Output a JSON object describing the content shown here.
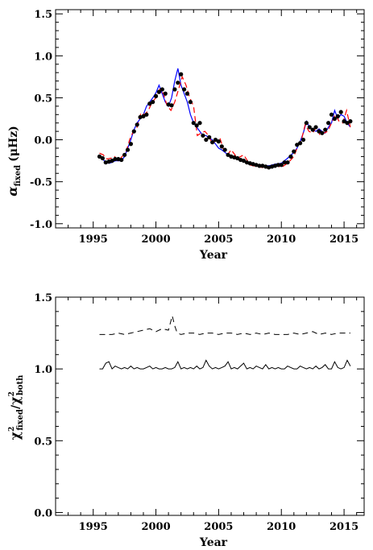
{
  "chart_data": [
    {
      "type": "line",
      "xlabel": "Year",
      "ylabel": {
        "symbol": "α",
        "subscript": "fixed",
        "unit": "(μHz)"
      },
      "xlim": [
        1992,
        2016.6
      ],
      "ylim": [
        -1.05,
        1.55
      ],
      "xticks": [
        1995,
        2000,
        2005,
        2010,
        2015
      ],
      "xtick_labels": [
        "1995",
        "2000",
        "2005",
        "2010",
        "2015"
      ],
      "yticks": [
        -1.0,
        -0.5,
        0.0,
        0.5,
        1.0,
        1.5
      ],
      "ytick_labels": [
        "-1.0",
        "-0.5",
        "0.0",
        "0.5",
        "1.0",
        "1.5"
      ],
      "grid": false,
      "colors": {
        "blue": "#0000ff",
        "red": "#ff0000",
        "dots": "#000000"
      },
      "series": [
        {
          "style": "blue-solid",
          "x": [
            1995.7,
            1996.0,
            1996.25,
            1996.5,
            1996.75,
            1997.0,
            1997.25,
            1997.5,
            1997.75,
            1998.0,
            1998.25,
            1998.5,
            1998.75,
            1999.0,
            1999.25,
            1999.5,
            1999.75,
            2000.0,
            2000.25,
            2000.5,
            2000.75,
            2001.0,
            2001.25,
            2001.5,
            2001.75,
            2002.0,
            2002.25,
            2002.5,
            2002.75,
            2003.0,
            2003.25,
            2003.5,
            2003.75,
            2004.0,
            2004.25,
            2004.5,
            2004.75,
            2005.0,
            2005.25,
            2005.5,
            2005.75,
            2006.0,
            2006.5,
            2007.0,
            2007.5,
            2008.0,
            2008.5,
            2009.0,
            2009.5,
            2010.0,
            2010.5,
            2011.0,
            2011.25,
            2011.5,
            2011.75,
            2012.0,
            2012.25,
            2012.5,
            2012.75,
            2013.0,
            2013.25,
            2013.5,
            2013.75,
            2014.0,
            2014.25,
            2014.5,
            2014.75,
            2015.0,
            2015.25,
            2015.5
          ],
          "y": [
            -0.22,
            -0.27,
            -0.28,
            -0.27,
            -0.25,
            -0.25,
            -0.25,
            -0.2,
            -0.1,
            0.0,
            0.12,
            0.2,
            0.25,
            0.3,
            0.4,
            0.45,
            0.5,
            0.56,
            0.65,
            0.55,
            0.45,
            0.4,
            0.5,
            0.7,
            0.85,
            0.65,
            0.55,
            0.45,
            0.3,
            0.2,
            0.15,
            0.1,
            0.05,
            0.05,
            0.02,
            0.0,
            -0.05,
            -0.1,
            -0.12,
            -0.15,
            -0.18,
            -0.2,
            -0.23,
            -0.25,
            -0.28,
            -0.3,
            -0.31,
            -0.31,
            -0.29,
            -0.28,
            -0.22,
            -0.15,
            -0.1,
            -0.02,
            0.08,
            0.22,
            0.15,
            0.12,
            0.1,
            0.13,
            0.1,
            0.08,
            0.15,
            0.2,
            0.35,
            0.25,
            0.3,
            0.28,
            0.2,
            0.15
          ]
        },
        {
          "style": "red-dashed",
          "x": [
            1995.5,
            1995.8,
            1996.1,
            1996.4,
            1996.7,
            1997.0,
            1997.3,
            1997.6,
            1997.9,
            1998.2,
            1998.5,
            1998.8,
            1999.1,
            1999.4,
            1999.7,
            2000.0,
            2000.3,
            2000.6,
            2000.9,
            2001.2,
            2001.5,
            2001.8,
            2002.1,
            2002.4,
            2002.7,
            2003.0,
            2003.3,
            2003.6,
            2003.9,
            2004.2,
            2004.5,
            2004.8,
            2005.1,
            2005.4,
            2005.7,
            2006.0,
            2006.5,
            2007.0,
            2007.5,
            2008.0,
            2008.5,
            2009.0,
            2009.5,
            2010.0,
            2010.5,
            2011.0,
            2011.3,
            2011.6,
            2011.9,
            2012.2,
            2012.5,
            2012.8,
            2013.1,
            2013.4,
            2013.7,
            2014.0,
            2014.3,
            2014.6,
            2014.9,
            2015.2,
            2015.5
          ],
          "y": [
            -0.16,
            -0.18,
            -0.23,
            -0.22,
            -0.2,
            -0.25,
            -0.2,
            -0.15,
            0.0,
            0.1,
            0.15,
            0.32,
            0.3,
            0.35,
            0.45,
            0.5,
            0.6,
            0.55,
            0.4,
            0.35,
            0.45,
            0.6,
            0.75,
            0.65,
            0.5,
            0.4,
            0.05,
            0.08,
            0.1,
            0.05,
            -0.05,
            0.0,
            0.02,
            -0.12,
            -0.18,
            -0.12,
            -0.22,
            -0.18,
            -0.3,
            -0.32,
            -0.33,
            -0.34,
            -0.3,
            -0.33,
            -0.28,
            -0.2,
            -0.08,
            0.0,
            0.18,
            0.1,
            0.08,
            0.15,
            0.05,
            0.08,
            0.1,
            0.2,
            0.3,
            0.22,
            0.2,
            0.35,
            0.15
          ]
        },
        {
          "style": "black-dots",
          "x": [
            1995.5,
            1995.75,
            1996.0,
            1996.25,
            1996.5,
            1996.75,
            1997.0,
            1997.25,
            1997.5,
            1997.75,
            1998.0,
            1998.25,
            1998.5,
            1998.75,
            1999.0,
            1999.25,
            1999.5,
            1999.75,
            2000.0,
            2000.25,
            2000.5,
            2000.75,
            2001.0,
            2001.25,
            2001.5,
            2001.75,
            2002.0,
            2002.25,
            2002.5,
            2002.75,
            2003.0,
            2003.25,
            2003.5,
            2003.75,
            2004.0,
            2004.25,
            2004.5,
            2004.75,
            2005.0,
            2005.25,
            2005.5,
            2005.75,
            2006.0,
            2006.25,
            2006.5,
            2006.75,
            2007.0,
            2007.25,
            2007.5,
            2007.75,
            2008.0,
            2008.25,
            2008.5,
            2008.75,
            2009.0,
            2009.25,
            2009.5,
            2009.75,
            2010.0,
            2010.25,
            2010.5,
            2010.75,
            2011.0,
            2011.25,
            2011.5,
            2011.75,
            2012.0,
            2012.25,
            2012.5,
            2012.75,
            2013.0,
            2013.25,
            2013.5,
            2013.75,
            2014.0,
            2014.25,
            2014.5,
            2014.75,
            2015.0,
            2015.25,
            2015.5
          ],
          "y": [
            -0.2,
            -0.22,
            -0.27,
            -0.26,
            -0.25,
            -0.23,
            -0.23,
            -0.24,
            -0.18,
            -0.12,
            -0.05,
            0.1,
            0.18,
            0.27,
            0.28,
            0.3,
            0.43,
            0.45,
            0.52,
            0.57,
            0.6,
            0.55,
            0.42,
            0.41,
            0.6,
            0.68,
            0.78,
            0.6,
            0.55,
            0.45,
            0.2,
            0.17,
            0.2,
            0.05,
            0.0,
            0.03,
            -0.03,
            0.0,
            -0.02,
            -0.08,
            -0.12,
            -0.18,
            -0.2,
            -0.21,
            -0.22,
            -0.24,
            -0.25,
            -0.27,
            -0.28,
            -0.29,
            -0.3,
            -0.31,
            -0.31,
            -0.32,
            -0.33,
            -0.32,
            -0.31,
            -0.3,
            -0.3,
            -0.27,
            -0.27,
            -0.2,
            -0.14,
            -0.06,
            -0.04,
            0.0,
            0.2,
            0.15,
            0.12,
            0.15,
            0.1,
            0.08,
            0.12,
            0.2,
            0.3,
            0.25,
            0.28,
            0.33,
            0.22,
            0.2,
            0.22
          ]
        }
      ]
    },
    {
      "type": "line",
      "xlabel": "Year",
      "ylabel": {
        "chi": "χ",
        "sup": "2",
        "num_sub": "fixed",
        "den_sub": "both"
      },
      "xlim": [
        1992,
        2016.6
      ],
      "ylim": [
        -0.02,
        1.5
      ],
      "xticks": [
        1995,
        2000,
        2005,
        2010,
        2015
      ],
      "xtick_labels": [
        "1995",
        "2000",
        "2005",
        "2010",
        "2015"
      ],
      "yticks": [
        0.0,
        0.5,
        1.0,
        1.5
      ],
      "ytick_labels": [
        "0.0",
        "0.5",
        "1.0",
        "1.5"
      ],
      "grid": false,
      "series": [
        {
          "style": "black-dashed",
          "x": [
            1995.5,
            1996.0,
            1996.5,
            1997.0,
            1997.5,
            1998.0,
            1998.5,
            1999.0,
            1999.5,
            2000.0,
            2000.5,
            2001.0,
            2001.3,
            2001.5,
            2001.7,
            2002.0,
            2002.5,
            2003.0,
            2003.5,
            2004.0,
            2004.5,
            2005.0,
            2005.5,
            2006.0,
            2006.5,
            2007.0,
            2007.5,
            2008.0,
            2008.5,
            2009.0,
            2009.5,
            2010.0,
            2010.5,
            2011.0,
            2011.5,
            2012.0,
            2012.5,
            2013.0,
            2013.5,
            2014.0,
            2014.5,
            2015.0,
            2015.5
          ],
          "y": [
            1.24,
            1.24,
            1.24,
            1.25,
            1.24,
            1.25,
            1.26,
            1.27,
            1.28,
            1.26,
            1.28,
            1.27,
            1.37,
            1.3,
            1.25,
            1.24,
            1.25,
            1.25,
            1.24,
            1.25,
            1.25,
            1.24,
            1.25,
            1.25,
            1.24,
            1.25,
            1.24,
            1.25,
            1.24,
            1.25,
            1.24,
            1.24,
            1.24,
            1.25,
            1.24,
            1.25,
            1.26,
            1.24,
            1.25,
            1.24,
            1.25,
            1.25,
            1.25
          ]
        },
        {
          "style": "black-solid",
          "x": [
            1995.5,
            1995.75,
            1996.0,
            1996.25,
            1996.5,
            1996.75,
            1997.0,
            1997.25,
            1997.5,
            1997.75,
            1998.0,
            1998.25,
            1998.5,
            1998.75,
            1999.0,
            1999.25,
            1999.5,
            1999.75,
            2000.0,
            2000.25,
            2000.5,
            2000.75,
            2001.0,
            2001.25,
            2001.5,
            2001.75,
            2002.0,
            2002.25,
            2002.5,
            2002.75,
            2003.0,
            2003.25,
            2003.5,
            2003.75,
            2004.0,
            2004.25,
            2004.5,
            2004.75,
            2005.0,
            2005.25,
            2005.5,
            2005.75,
            2006.0,
            2006.25,
            2006.5,
            2006.75,
            2007.0,
            2007.25,
            2007.5,
            2007.75,
            2008.0,
            2008.25,
            2008.5,
            2008.75,
            2009.0,
            2009.25,
            2009.5,
            2009.75,
            2010.0,
            2010.25,
            2010.5,
            2010.75,
            2011.0,
            2011.25,
            2011.5,
            2011.75,
            2012.0,
            2012.25,
            2012.5,
            2012.75,
            2013.0,
            2013.25,
            2013.5,
            2013.75,
            2014.0,
            2014.25,
            2014.5,
            2014.75,
            2015.0,
            2015.25,
            2015.5
          ],
          "y": [
            1.0,
            1.0,
            1.04,
            1.05,
            1.0,
            1.02,
            1.01,
            1.0,
            1.01,
            1.0,
            1.02,
            1.0,
            1.01,
            1.0,
            1.0,
            1.01,
            1.02,
            1.0,
            1.01,
            1.0,
            1.0,
            1.01,
            1.0,
            1.0,
            1.01,
            1.05,
            1.0,
            1.01,
            1.0,
            1.01,
            1.0,
            1.02,
            1.0,
            1.01,
            1.06,
            1.02,
            1.0,
            1.01,
            1.0,
            1.01,
            1.02,
            1.05,
            1.0,
            1.01,
            1.0,
            1.02,
            1.04,
            1.0,
            1.01,
            1.0,
            1.02,
            1.01,
            1.0,
            1.03,
            1.0,
            1.01,
            1.0,
            1.01,
            1.0,
            1.0,
            1.02,
            1.01,
            1.0,
            1.0,
            1.02,
            1.01,
            1.0,
            1.01,
            1.0,
            1.02,
            1.0,
            1.01,
            1.03,
            1.0,
            1.0,
            1.05,
            1.01,
            1.0,
            1.01,
            1.06,
            1.02
          ]
        }
      ]
    }
  ]
}
